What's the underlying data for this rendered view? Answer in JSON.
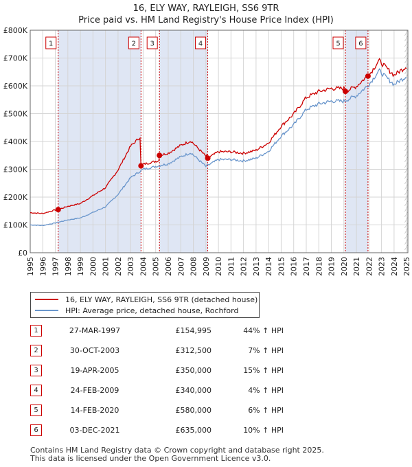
{
  "title_line1": "16, ELY WAY, RAYLEIGH, SS6 9TR",
  "title_line2": "Price paid vs. HM Land Registry's House Price Index (HPI)",
  "legend": {
    "property": "16, ELY WAY, RAYLEIGH, SS6 9TR (detached house)",
    "hpi": "HPI: Average price, detached house, Rochford"
  },
  "colors": {
    "property": "#cc0000",
    "hpi": "#6a96cc",
    "shade": "#dfe6f4",
    "marker": "#cc0000"
  },
  "sales": [
    {
      "num": "1",
      "date": "27-MAR-1997",
      "price": "£154,995",
      "hpi": "44% ↑ HPI"
    },
    {
      "num": "2",
      "date": "30-OCT-2003",
      "price": "£312,500",
      "hpi": "7% ↑ HPI"
    },
    {
      "num": "3",
      "date": "19-APR-2005",
      "price": "£350,000",
      "hpi": "15% ↑ HPI"
    },
    {
      "num": "4",
      "date": "24-FEB-2009",
      "price": "£340,000",
      "hpi": "4% ↑ HPI"
    },
    {
      "num": "5",
      "date": "14-FEB-2020",
      "price": "£580,000",
      "hpi": "6% ↑ HPI"
    },
    {
      "num": "6",
      "date": "03-DEC-2021",
      "price": "£635,000",
      "hpi": "10% ↑ HPI"
    }
  ],
  "footer": {
    "line1": "Contains HM Land Registry data © Crown copyright and database right 2025.",
    "line2": "This data is licensed under the Open Government Licence v3.0."
  },
  "chart_data": {
    "type": "line",
    "title": "Price paid vs. HM Land Registry's House Price Index (HPI)",
    "xlim": [
      1995,
      2025.1
    ],
    "ylim": [
      0,
      800000
    ],
    "x_ticks": [
      1995,
      1996,
      1997,
      1998,
      1999,
      2000,
      2001,
      2002,
      2003,
      2004,
      2005,
      2006,
      2007,
      2008,
      2009,
      2010,
      2011,
      2012,
      2013,
      2014,
      2015,
      2016,
      2017,
      2018,
      2019,
      2020,
      2021,
      2022,
      2023,
      2024,
      2025
    ],
    "y_ticks": [
      0,
      100000,
      200000,
      300000,
      400000,
      500000,
      600000,
      700000,
      800000
    ],
    "y_tick_labels": [
      "£0",
      "£100K",
      "£200K",
      "£300K",
      "£400K",
      "£500K",
      "£600K",
      "£700K",
      "£800K"
    ],
    "shaded_ranges": [
      [
        1997.23,
        2003.83
      ],
      [
        2005.3,
        2009.15
      ],
      [
        2020.12,
        2021.92
      ]
    ],
    "events": [
      {
        "label": "1",
        "x": 1997.23,
        "y": 154995
      },
      {
        "label": "2",
        "x": 2003.83,
        "y": 312500
      },
      {
        "label": "3",
        "x": 2005.3,
        "y": 350000
      },
      {
        "label": "4",
        "x": 2009.15,
        "y": 340000
      },
      {
        "label": "5",
        "x": 2020.12,
        "y": 580000
      },
      {
        "label": "6",
        "x": 2021.92,
        "y": 635000
      }
    ],
    "hpi_anchor_points": [
      [
        1995,
        100000
      ],
      [
        1996,
        98000
      ],
      [
        1997,
        107000
      ],
      [
        1998,
        118000
      ],
      [
        1999,
        125000
      ],
      [
        2000,
        145000
      ],
      [
        2001,
        165000
      ],
      [
        2002,
        210000
      ],
      [
        2003,
        270000
      ],
      [
        2004,
        300000
      ],
      [
        2005,
        310000
      ],
      [
        2006,
        320000
      ],
      [
        2007,
        345000
      ],
      [
        2007.8,
        360000
      ],
      [
        2009,
        310000
      ],
      [
        2010,
        335000
      ],
      [
        2011,
        335000
      ],
      [
        2012,
        330000
      ],
      [
        2013,
        340000
      ],
      [
        2014,
        365000
      ],
      [
        2015,
        420000
      ],
      [
        2016,
        460000
      ],
      [
        2017,
        515000
      ],
      [
        2018,
        535000
      ],
      [
        2019,
        545000
      ],
      [
        2020,
        545000
      ],
      [
        2021,
        565000
      ],
      [
        2022,
        605000
      ],
      [
        2022.8,
        655000
      ],
      [
        2023.5,
        625000
      ],
      [
        2024,
        605000
      ],
      [
        2025,
        635000
      ]
    ],
    "series": [
      {
        "name": "16, ELY WAY, RAYLEIGH, SS6 9TR (detached house)"
      },
      {
        "name": "HPI: Average price, detached house, Rochford"
      }
    ]
  }
}
